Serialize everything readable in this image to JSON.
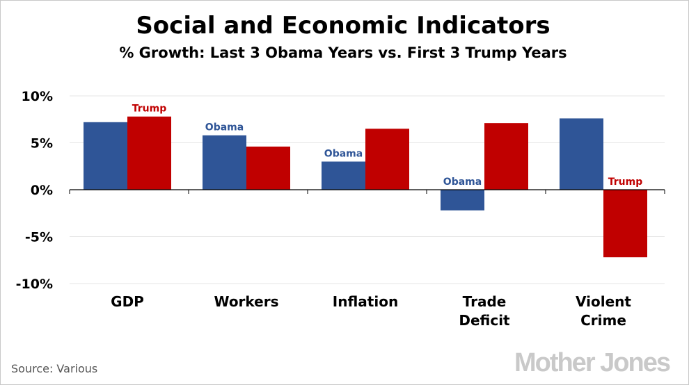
{
  "chart_data": {
    "type": "bar",
    "title": "Social and Economic Indicators",
    "subtitle": "% Growth: Last 3 Obama Years vs. First 3 Trump Years",
    "categories": [
      [
        "GDP"
      ],
      [
        "Workers"
      ],
      [
        "Inflation"
      ],
      [
        "Trade",
        "Deficit"
      ],
      [
        "Violent",
        "Crime"
      ]
    ],
    "series": [
      {
        "name": "Obama",
        "color": "#2f5597",
        "values": [
          7.2,
          5.8,
          3.0,
          -2.2,
          7.6
        ]
      },
      {
        "name": "Trump",
        "color": "#c00000",
        "values": [
          7.8,
          4.6,
          6.5,
          7.1,
          -7.2
        ]
      }
    ],
    "ylim": [
      -10,
      10
    ],
    "yticks": [
      10,
      5,
      0,
      -5,
      -10
    ],
    "ytick_labels": [
      "10%",
      "5%",
      "0%",
      "-5%",
      "-10%"
    ],
    "annotations": [
      {
        "text": "Trump",
        "category": 0,
        "series": 1
      },
      {
        "text": "Obama",
        "category": 1,
        "series": 0
      },
      {
        "text": "Obama",
        "category": 2,
        "series": 0
      },
      {
        "text": "Obama",
        "category": 3,
        "series": 0
      },
      {
        "text": "Trump",
        "category": 4,
        "series": 1
      }
    ],
    "grid": true
  },
  "source": "Source: Various",
  "brand": "Mother Jones"
}
